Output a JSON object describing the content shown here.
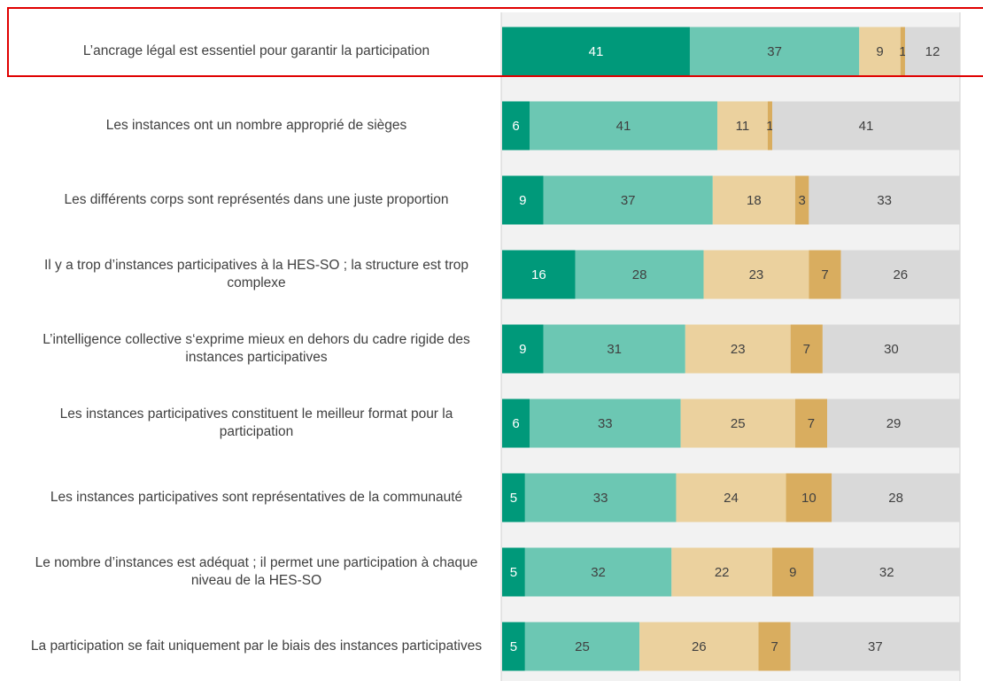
{
  "chart_data": {
    "type": "stacked-barh",
    "categories": [
      "L’ancrage légal est essentiel pour garantir la participation",
      "Les instances ont un nombre approprié de sièges",
      "Les différents corps sont représentés dans une juste proportion",
      "Il y a trop d’instances participatives à la HES-SO ; la structure est trop complexe",
      "L’intelligence collective s‘exprime mieux en dehors du cadre rigide des instances participatives",
      "Les instances participatives constituent le meilleur format pour la participation",
      "Les instances participatives sont représentatives de la communauté",
      "Le nombre d’instances est adéquat ; il permet une participation à chaque niveau de la HES-SO",
      "La participation se fait uniquement par le biais des instances participatives"
    ],
    "series": [
      {
        "color": "#00997a",
        "values": [
          41,
          6,
          9,
          16,
          9,
          6,
          5,
          5,
          5
        ]
      },
      {
        "color": "#6cc7b3",
        "values": [
          37,
          41,
          37,
          28,
          31,
          33,
          33,
          32,
          25
        ]
      },
      {
        "color": "#ebd19e",
        "values": [
          9,
          11,
          18,
          23,
          23,
          25,
          24,
          22,
          26
        ]
      },
      {
        "color": "#d9ad5f",
        "values": [
          1,
          1,
          3,
          7,
          7,
          7,
          10,
          9,
          7
        ]
      },
      {
        "color": "#d9d9d9",
        "values": [
          12,
          41,
          33,
          26,
          30,
          29,
          28,
          32,
          37
        ]
      }
    ],
    "xlim": [
      0,
      100
    ]
  }
}
